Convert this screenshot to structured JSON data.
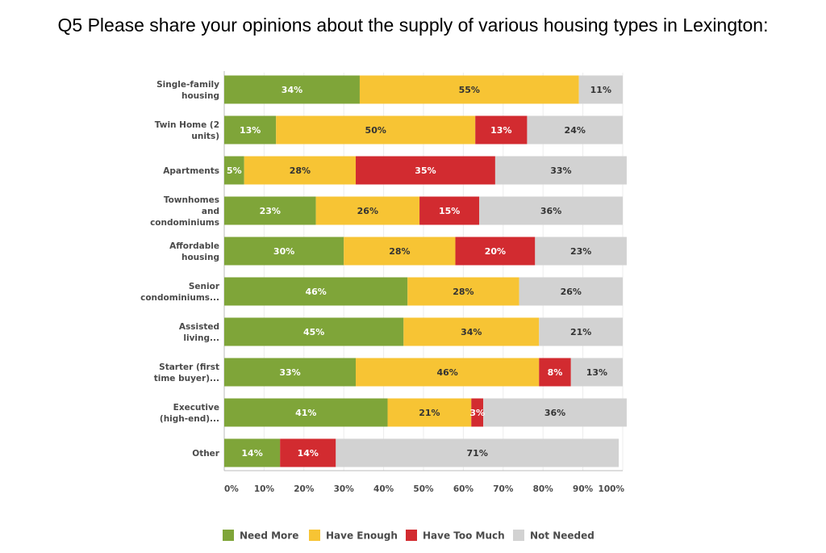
{
  "chart_data": {
    "type": "bar",
    "orientation": "horizontal",
    "stacked": true,
    "title": "Q5 Please share your opinions about the supply of various housing types in Lexington:",
    "categories": [
      [
        "Single-family",
        "housing"
      ],
      [
        "Twin Home (2",
        "units)"
      ],
      [
        "Apartments"
      ],
      [
        "Townhomes",
        "and",
        "condominiums"
      ],
      [
        "Affordable",
        "housing"
      ],
      [
        "Senior",
        "condominiums..."
      ],
      [
        "Assisted",
        "living..."
      ],
      [
        "Starter (first",
        "time buyer)..."
      ],
      [
        "Executive",
        "(high-end)..."
      ],
      [
        "Other"
      ]
    ],
    "series": [
      {
        "name": "Need More",
        "color": "#7fa539",
        "label_color": "#ffffff",
        "values": [
          34,
          13,
          5,
          23,
          30,
          46,
          45,
          33,
          41,
          14
        ]
      },
      {
        "name": "Have Enough",
        "color": "#f7c434",
        "label_color": "#333333",
        "values": [
          55,
          50,
          28,
          26,
          28,
          28,
          34,
          46,
          21,
          0
        ]
      },
      {
        "name": "Have Too Much",
        "color": "#d22b30",
        "label_color": "#ffffff",
        "values": [
          0,
          13,
          35,
          15,
          20,
          0,
          0,
          8,
          3,
          14
        ]
      },
      {
        "name": "Not Needed",
        "color": "#d2d2d2",
        "label_color": "#333333",
        "values": [
          11,
          24,
          33,
          36,
          23,
          26,
          21,
          13,
          36,
          71
        ]
      }
    ],
    "xlim": [
      0,
      100
    ],
    "xticks": [
      "0%",
      "10%",
      "20%",
      "30%",
      "40%",
      "50%",
      "60%",
      "70%",
      "80%",
      "90%",
      "100%"
    ],
    "xlabel": "",
    "ylabel": "",
    "legend_position": "bottom",
    "grid": true
  }
}
